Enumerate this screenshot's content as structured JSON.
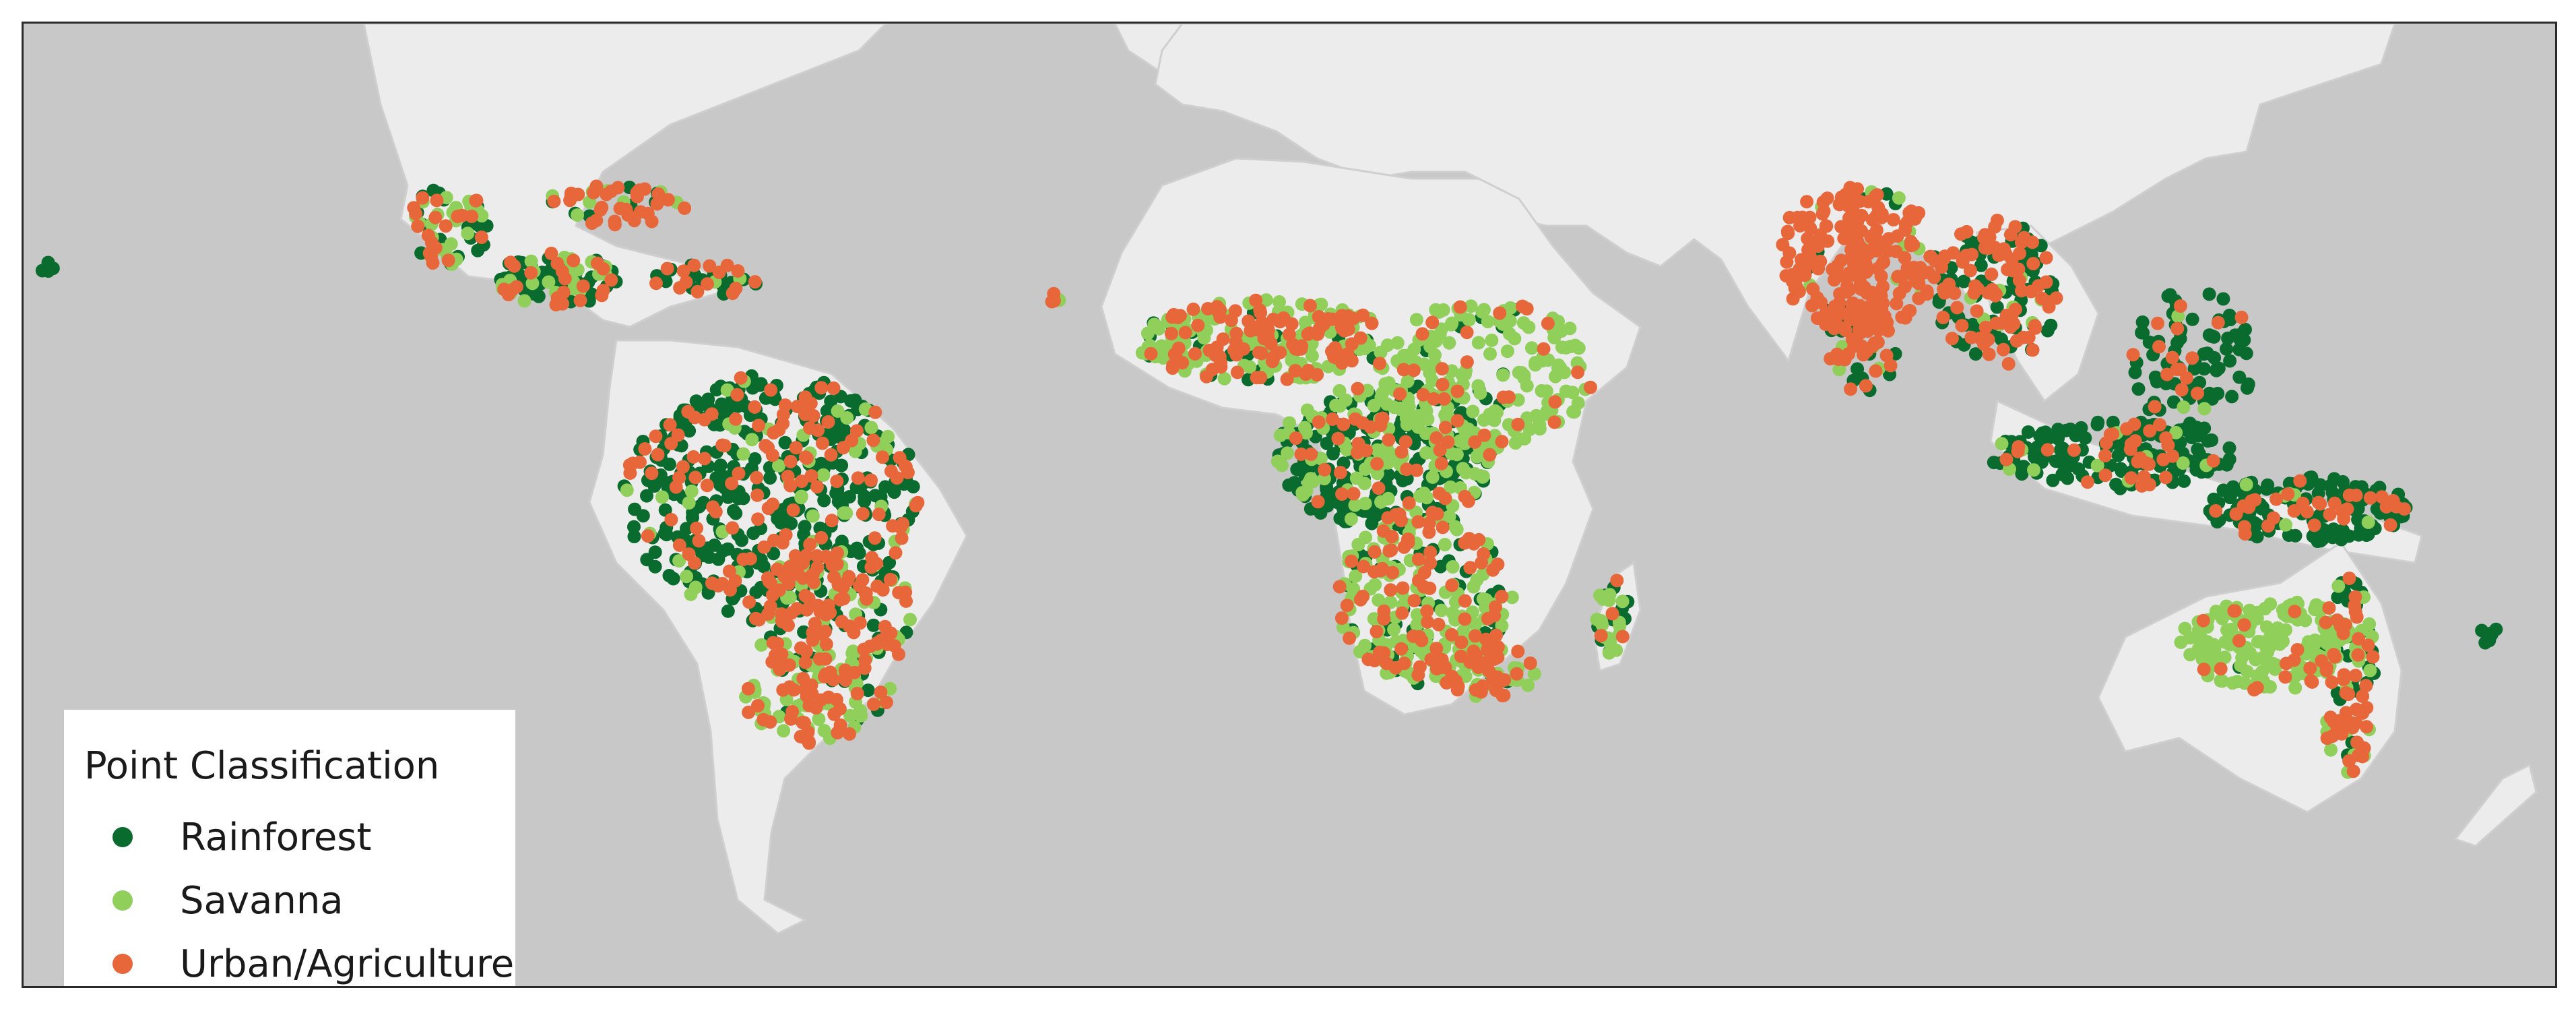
{
  "map": {
    "projection": "world-equirectangular-tropics",
    "background_color": "#c8c8c8",
    "land_color": "#ececec",
    "border_color": "#cfcfcf"
  },
  "legend": {
    "title": "Point Classification",
    "items": [
      {
        "label": "Rainforest",
        "color": "#0a6b2e"
      },
      {
        "label": "Savanna",
        "color": "#8fcf5a"
      },
      {
        "label": "Urban/Agriculture",
        "color": "#e8673a"
      }
    ]
  }
}
